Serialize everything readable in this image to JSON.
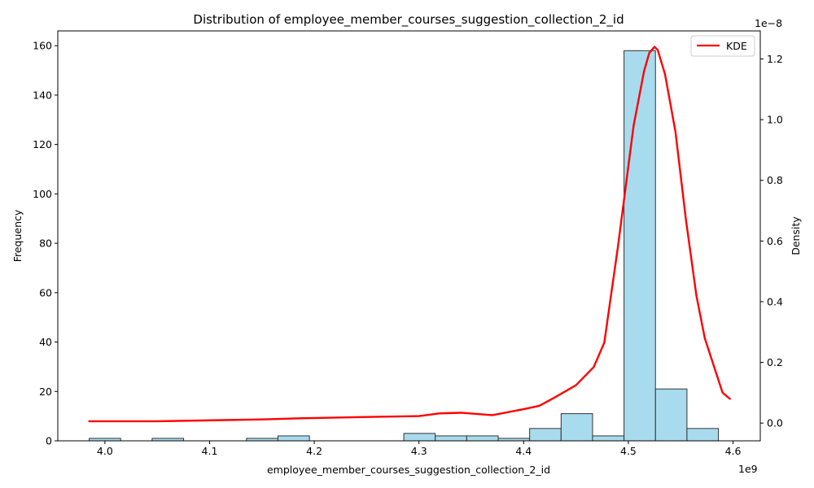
{
  "chart_data": {
    "type": "bar",
    "title": "Distribution of employee_member_courses_suggestion_collection_2_id",
    "xlabel": "employee_member_courses_suggestion_collection_2_id",
    "ylabel": "Frequency",
    "y2label": "Density",
    "x_offset_label": "1e9",
    "y2_offset_label": "1e−8",
    "xlim": [
      3.955,
      4.626
    ],
    "ylim": [
      0,
      166
    ],
    "y2lim": [
      -0.0585,
      1.2925
    ],
    "x_ticks": [
      4.0,
      4.1,
      4.2,
      4.3,
      4.4,
      4.5,
      4.6
    ],
    "x_tick_labels": [
      "4.0",
      "4.1",
      "4.2",
      "4.3",
      "4.4",
      "4.5",
      "4.6"
    ],
    "y_ticks": [
      0,
      20,
      40,
      60,
      80,
      100,
      120,
      140,
      160
    ],
    "y_tick_labels": [
      "0",
      "20",
      "40",
      "60",
      "80",
      "100",
      "120",
      "140",
      "160"
    ],
    "y2_ticks": [
      0.0,
      0.2,
      0.4,
      0.6,
      0.8,
      1.0,
      1.2
    ],
    "y2_tick_labels": [
      "0.0",
      "0.2",
      "0.4",
      "0.6",
      "0.8",
      "1.0",
      "1.2"
    ],
    "bins": {
      "start": 3.985,
      "width": 0.03005,
      "counts": [
        1,
        0,
        1,
        0,
        0,
        1,
        2,
        0,
        0,
        0,
        3,
        2,
        2,
        1,
        5,
        11,
        2,
        158,
        21,
        5
      ]
    },
    "bar_color": "#a8dbed",
    "bar_edge_color": "#333333",
    "series": [
      {
        "name": "KDE",
        "color": "#ff0000",
        "x": [
          3.985,
          4.05,
          4.15,
          4.19,
          4.25,
          4.3,
          4.32,
          4.34,
          4.37,
          4.4,
          4.415,
          4.43,
          4.45,
          4.467,
          4.477,
          4.49,
          4.505,
          4.515,
          4.52,
          4.525,
          4.528,
          4.535,
          4.545,
          4.555,
          4.565,
          4.573,
          4.59,
          4.597
        ],
        "y": [
          0.006,
          0.006,
          0.012,
          0.016,
          0.02,
          0.023,
          0.032,
          0.034,
          0.026,
          0.046,
          0.057,
          0.085,
          0.125,
          0.185,
          0.265,
          0.58,
          0.98,
          1.16,
          1.22,
          1.24,
          1.23,
          1.15,
          0.96,
          0.67,
          0.42,
          0.28,
          0.1,
          0.08
        ]
      }
    ],
    "legend": {
      "position": "top-right",
      "entries": [
        "KDE"
      ]
    }
  }
}
